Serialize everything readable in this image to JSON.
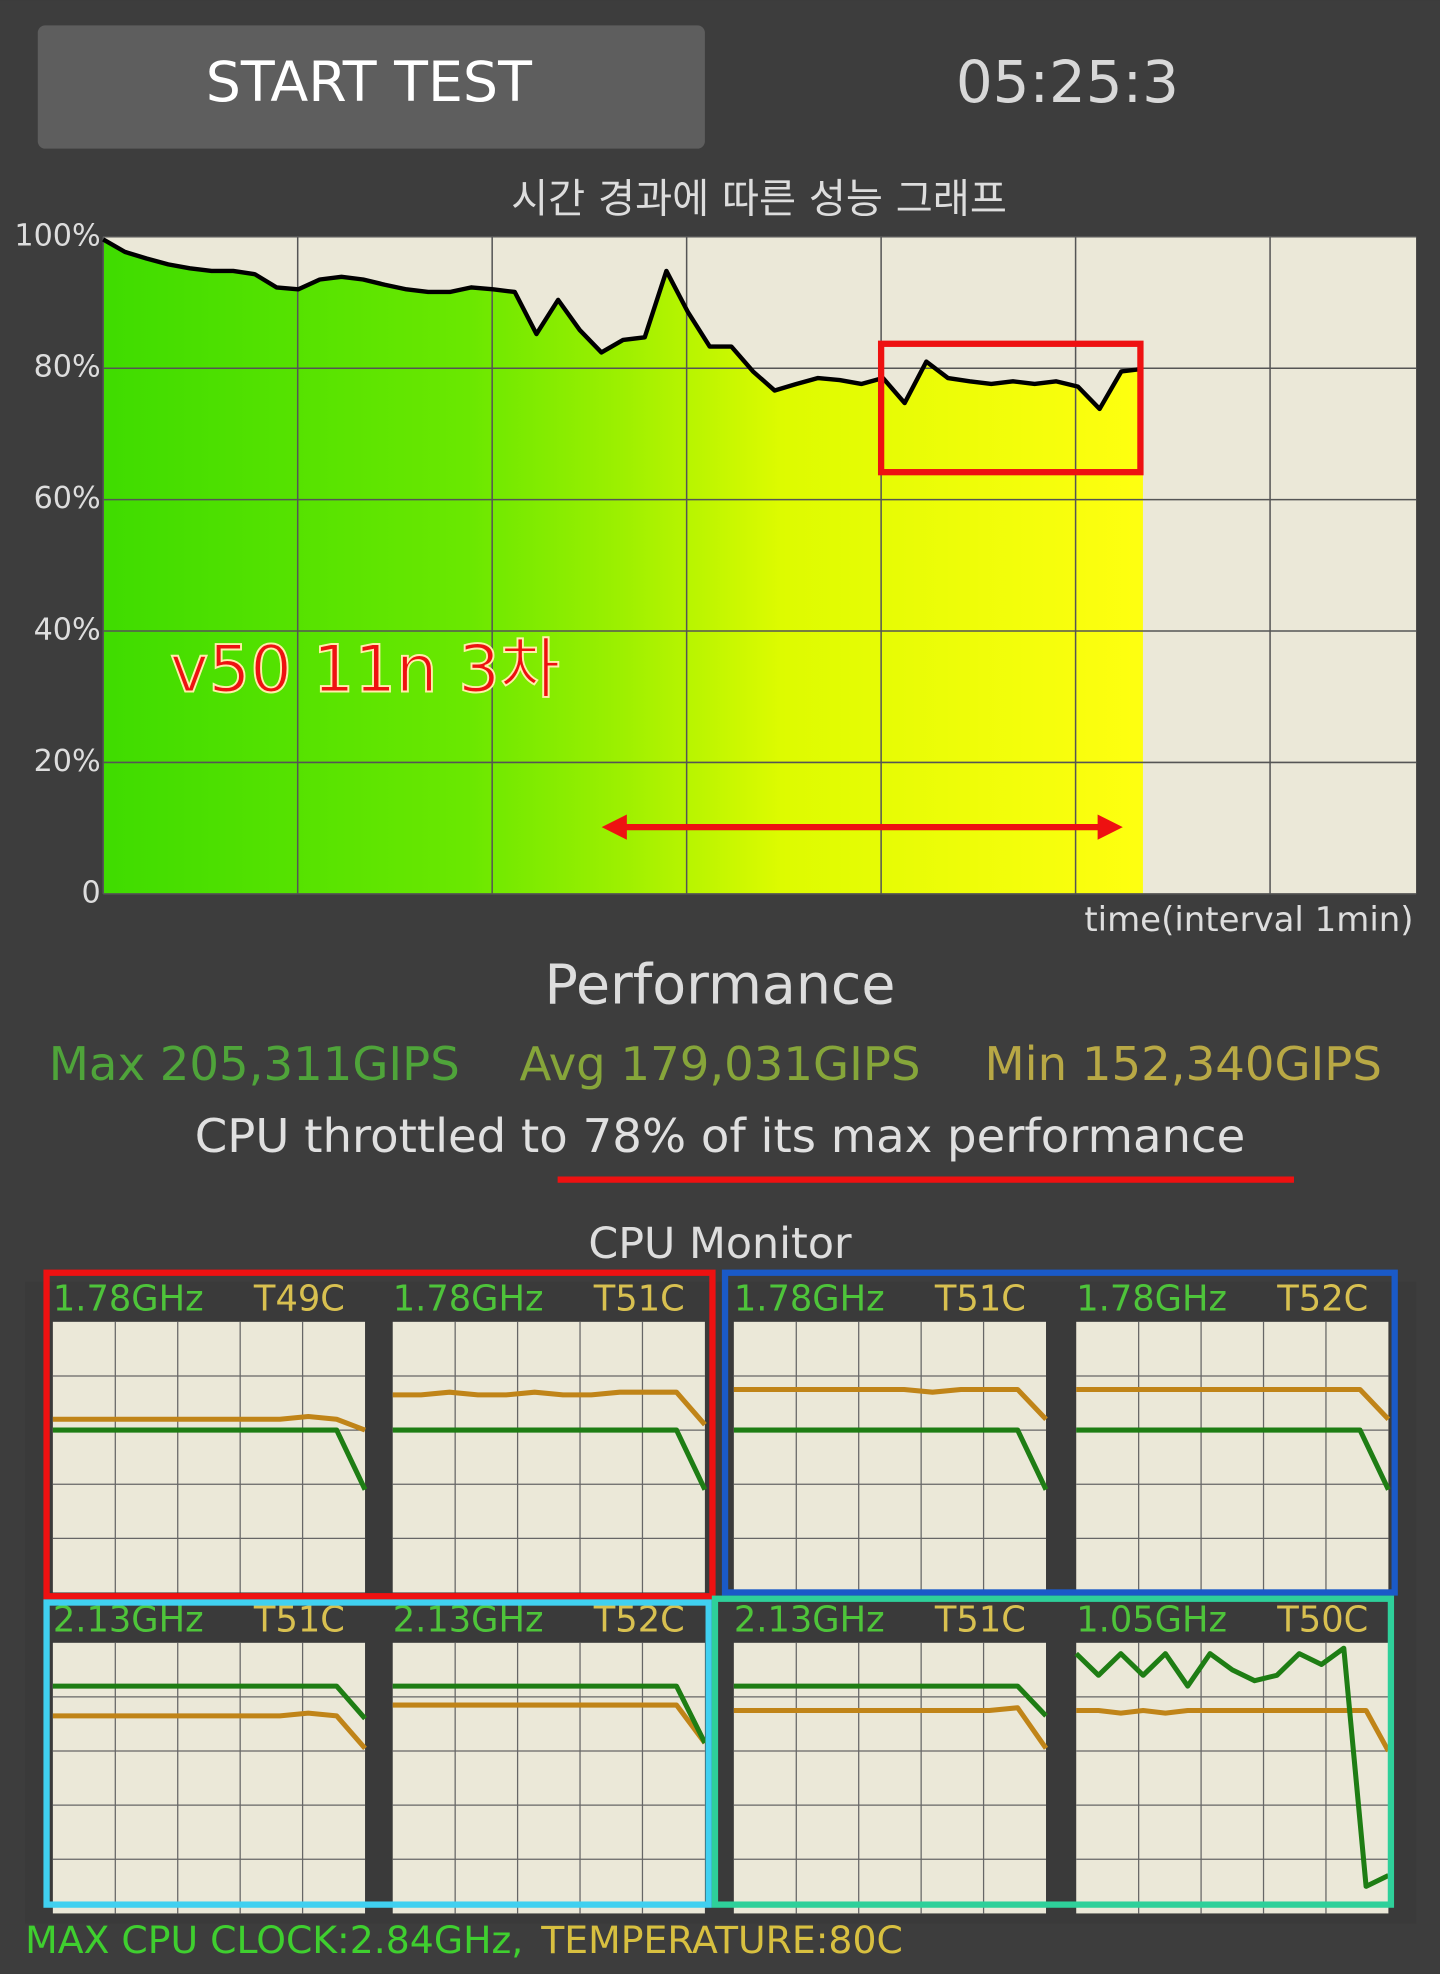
{
  "header": {
    "button": "START TEST",
    "timer": "05:25:3"
  },
  "chart_data": {
    "type": "line",
    "title": "시간 경과에 따른 성능 그래프",
    "x_label": "time(interval 1min)",
    "annotation": "v50 11n 3차",
    "ylim": [
      0,
      100
    ],
    "yticks": [
      0,
      {
        "value": 20,
        "label": "20%"
      },
      {
        "value": 40,
        "label": "40%"
      },
      {
        "value": 60,
        "label": "60%"
      },
      {
        "value": 80,
        "label": "80%"
      },
      {
        "value": 100,
        "label": "100%"
      }
    ],
    "grid": true,
    "color": "#000000",
    "values": [
      99.6,
      97.7,
      96.7,
      95.8,
      95.2,
      94.8,
      94.8,
      94.3,
      92.3,
      92,
      93.5,
      93.9,
      93.5,
      92.7,
      92,
      91.6,
      91.6,
      92.3,
      92,
      91.6,
      85.2,
      90.4,
      85.8,
      82.4,
      84.3,
      84.7,
      94.8,
      88.5,
      83.3,
      83.3,
      79.5,
      76.6,
      77.6,
      78.5,
      78.2,
      77.6,
      78.5,
      74.7,
      81,
      78.5,
      78,
      77.6,
      78,
      77.6,
      78,
      77.2,
      73.8,
      79.5,
      79.9
    ]
  },
  "performance": {
    "title": "Performance",
    "max": "Max 205,311GIPS",
    "avg": "Avg 179,031GIPS",
    "min": "Min 152,340GIPS",
    "summary": "CPU throttled to 78% of its max performance"
  },
  "cpu_monitor": {
    "title": "CPU Monitor",
    "clock_color": "#1e7d14",
    "temp_color": "#c08418",
    "ylim": [
      0,
      100
    ],
    "cores": [
      {
        "freq": "1.78GHz",
        "temp": "T49C",
        "clock": [
          60,
          60,
          60,
          60,
          60,
          60,
          60,
          60,
          60,
          60,
          60,
          38
        ],
        "temperature": [
          64,
          64,
          64,
          64,
          64,
          64,
          64,
          64,
          64,
          65,
          64,
          60
        ]
      },
      {
        "freq": "1.78GHz",
        "temp": "T51C",
        "clock": [
          60,
          60,
          60,
          60,
          60,
          60,
          60,
          60,
          60,
          60,
          60,
          38
        ],
        "temperature": [
          73,
          73,
          74,
          73,
          73,
          74,
          73,
          73,
          74,
          74,
          74,
          62
        ]
      },
      {
        "freq": "1.78GHz",
        "temp": "T51C",
        "clock": [
          60,
          60,
          60,
          60,
          60,
          60,
          60,
          60,
          60,
          60,
          60,
          38
        ],
        "temperature": [
          75,
          75,
          75,
          75,
          75,
          75,
          75,
          74,
          75,
          75,
          75,
          64
        ]
      },
      {
        "freq": "1.78GHz",
        "temp": "T52C",
        "clock": [
          60,
          60,
          60,
          60,
          60,
          60,
          60,
          60,
          60,
          60,
          60,
          38
        ],
        "temperature": [
          75,
          75,
          75,
          75,
          75,
          75,
          75,
          75,
          75,
          75,
          75,
          64
        ]
      },
      {
        "freq": "2.13GHz",
        "temp": "T51C",
        "clock": [
          84,
          84,
          84,
          84,
          84,
          84,
          84,
          84,
          84,
          84,
          84,
          72
        ],
        "temperature": [
          73,
          73,
          73,
          73,
          73,
          73,
          73,
          73,
          73,
          74,
          73,
          61
        ]
      },
      {
        "freq": "2.13GHz",
        "temp": "T52C",
        "clock": [
          84,
          84,
          84,
          84,
          84,
          84,
          84,
          84,
          84,
          84,
          84,
          63
        ],
        "temperature": [
          77,
          77,
          77,
          77,
          77,
          77,
          77,
          77,
          77,
          77,
          77,
          63
        ]
      },
      {
        "freq": "2.13GHz",
        "temp": "T51C",
        "clock": [
          84,
          84,
          84,
          84,
          84,
          84,
          84,
          84,
          84,
          84,
          84,
          73
        ],
        "temperature": [
          75,
          75,
          75,
          75,
          75,
          75,
          75,
          75,
          75,
          75,
          76,
          61
        ]
      },
      {
        "freq": "1.05GHz",
        "temp": "T50C",
        "clock": [
          96,
          88,
          96,
          88,
          96,
          84,
          96,
          90,
          86,
          88,
          96,
          92,
          98,
          10,
          14
        ],
        "temperature": [
          75,
          75,
          74,
          75,
          74,
          75,
          75,
          75,
          75,
          75,
          75,
          75,
          75,
          75,
          60
        ]
      }
    ],
    "footer_clock": "MAX CPU CLOCK:2.84GHz,",
    "footer_temp": "TEMPERATURE:80C"
  }
}
